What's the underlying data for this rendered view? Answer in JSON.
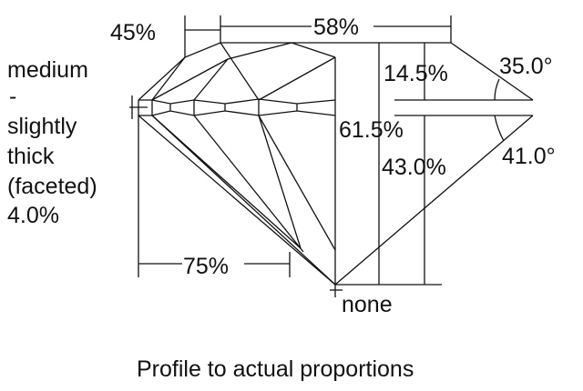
{
  "labels": {
    "crown_height_pct": "45%",
    "table_pct": "58%",
    "crown_height": "14.5%",
    "crown_angle": "35.0°",
    "total_depth": "61.5%",
    "pavilion_depth": "43.0%",
    "pavilion_angle": "41.0°",
    "lower_half": "75%",
    "culet": "none",
    "girdle_lines": [
      "medium",
      "-",
      "slightly",
      "thick",
      "(faceted)",
      "4.0%"
    ]
  },
  "caption": "Profile to actual proportions"
}
